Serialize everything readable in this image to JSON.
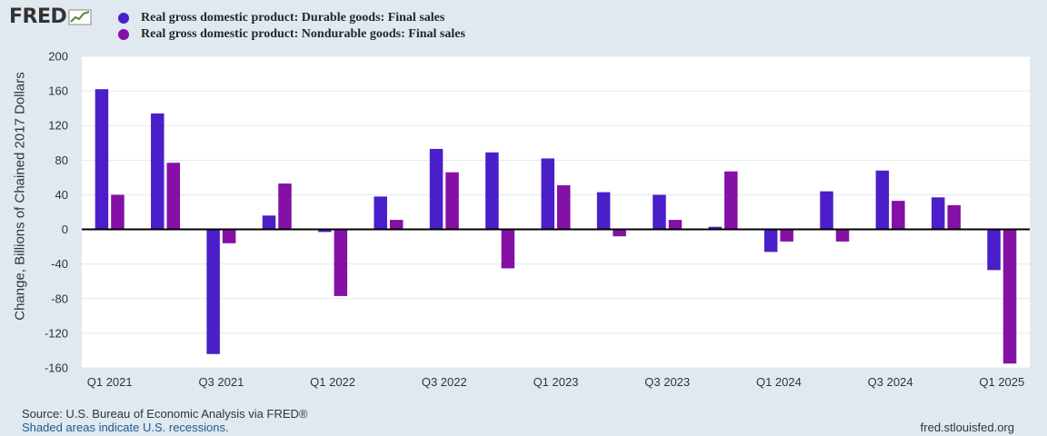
{
  "logo": {
    "text": "FRED",
    "icon": "chart-line-icon"
  },
  "chart_data": {
    "type": "bar",
    "title": "",
    "xlabel": "",
    "ylabel": "Change, Billions of Chained 2017 Dollars",
    "ylim": [
      -160,
      200
    ],
    "yticks": [
      200,
      160,
      120,
      80,
      40,
      0,
      -40,
      -80,
      -120,
      -160
    ],
    "grid": true,
    "legend_position": "top-left",
    "categories": [
      "Q1 2021",
      "Q2 2021",
      "Q3 2021",
      "Q4 2021",
      "Q1 2022",
      "Q2 2022",
      "Q3 2022",
      "Q4 2022",
      "Q1 2023",
      "Q2 2023",
      "Q3 2023",
      "Q4 2023",
      "Q1 2024",
      "Q2 2024",
      "Q3 2024",
      "Q4 2024",
      "Q1 2025"
    ],
    "xtick_labels": [
      "Q1 2021",
      "",
      "Q3 2021",
      "",
      "Q1 2022",
      "",
      "Q3 2022",
      "",
      "Q1 2023",
      "",
      "Q3 2023",
      "",
      "Q1 2024",
      "",
      "Q3 2024",
      "",
      "Q1 2025"
    ],
    "series": [
      {
        "name": "Real gross domestic product: Durable goods: Final sales",
        "color": "#4a1fc9",
        "values": [
          162,
          134,
          -144,
          16,
          -3,
          38,
          93,
          89,
          82,
          43,
          40,
          3,
          -26,
          44,
          68,
          37,
          -47
        ]
      },
      {
        "name": "Real gross domestic product: Nondurable goods: Final sales",
        "color": "#8410a6",
        "values": [
          40,
          77,
          -16,
          53,
          -77,
          11,
          66,
          -45,
          51,
          -8,
          11,
          67,
          -14,
          -14,
          33,
          28,
          -155
        ]
      }
    ]
  },
  "footer": {
    "source": "Source: U.S. Bureau of Economic Analysis via FRED®",
    "note": "Shaded areas indicate U.S. recessions.",
    "url": "fred.stlouisfed.org"
  }
}
